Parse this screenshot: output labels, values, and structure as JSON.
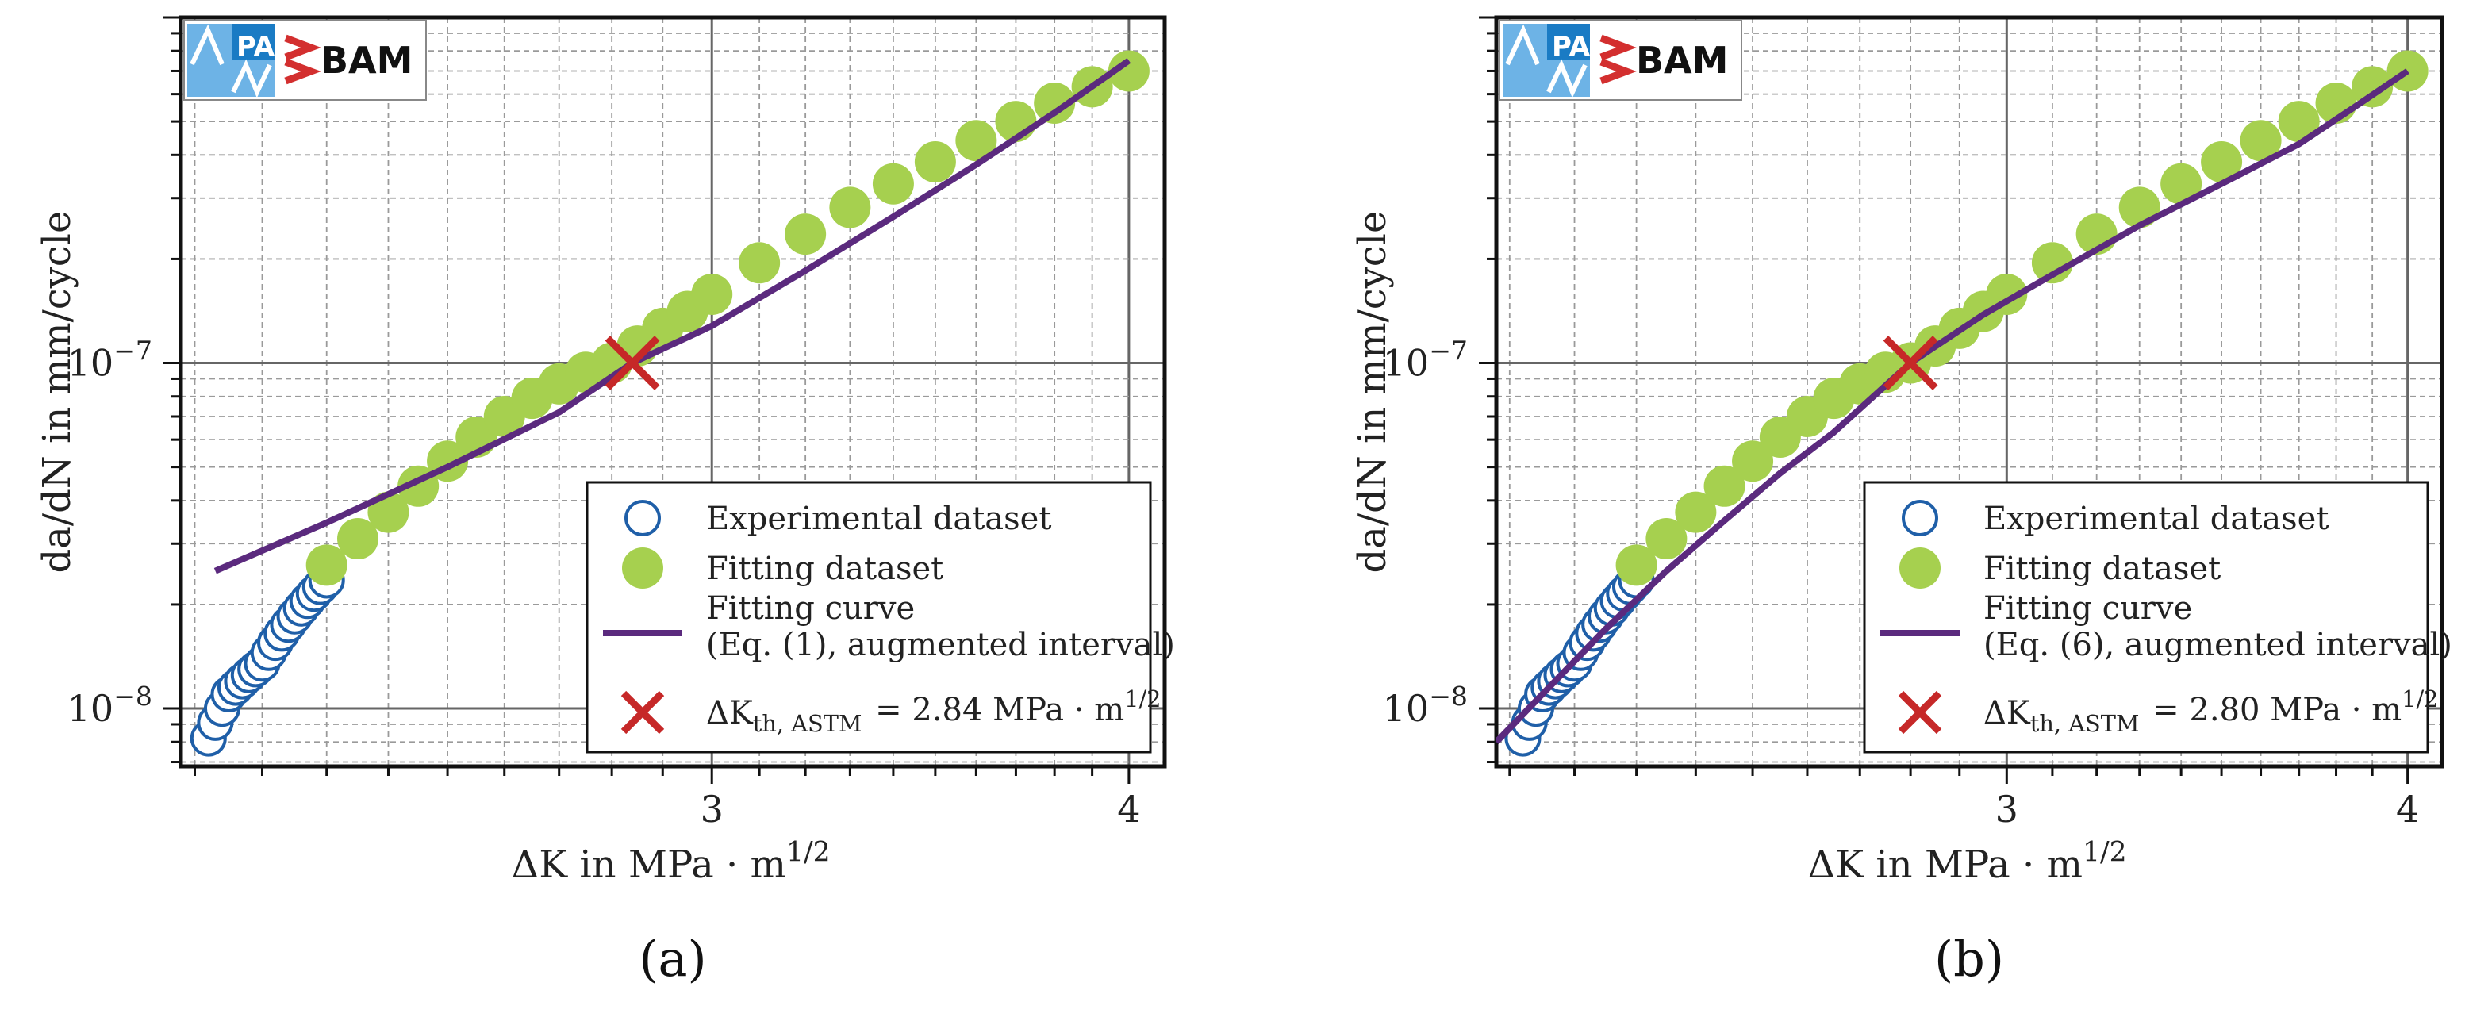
{
  "figure": {
    "colors": {
      "experimental": "#1f5fa8",
      "fitting_dataset": "#a6d04f",
      "fitting_curve": "#5b2a7e",
      "threshold_marker": "#c62828",
      "grid_major": "#666666",
      "grid_minor": "#9a9a9a"
    },
    "logo": {
      "text": "BAM",
      "letters": "MPA IfW",
      "icon": "bam-logo-icon"
    }
  },
  "chart_data": [
    {
      "type": "scatter",
      "panel_label": "(a)",
      "xlabel": "ΔK in MPa · m^1/2",
      "ylabel": "da/dN in mm/cycle",
      "xscale": "log",
      "yscale": "log",
      "xlim": [
        2.08,
        4.1
      ],
      "ylim": [
        6.8e-09,
        1e-06
      ],
      "x_ticks": [
        {
          "value": 3,
          "label": "3"
        },
        {
          "value": 4,
          "label": "4"
        }
      ],
      "y_ticks": [
        {
          "value": 1e-08,
          "label": "10",
          "exp": "−8"
        },
        {
          "value": 1e-07,
          "label": "10",
          "exp": "−7"
        }
      ],
      "grid": "on",
      "legend_position": "lower-right",
      "legend": [
        {
          "key": "experimental",
          "lines": [
            "Experimental dataset"
          ]
        },
        {
          "key": "fitting",
          "lines": [
            "Fitting dataset"
          ]
        },
        {
          "key": "curve",
          "lines": [
            "Fitting curve",
            "(Eq. (1), augmented interval)"
          ]
        },
        {
          "key": "threshold",
          "lines": [
            "ΔK_th, ASTM = 2.84 MPa · m^1/2"
          ]
        }
      ],
      "series": [
        {
          "name": "Experimental dataset",
          "kind": "open-circles",
          "x": [
            2.12,
            2.13,
            2.14,
            2.15,
            2.16,
            2.17,
            2.18,
            2.19,
            2.2,
            2.21,
            2.22,
            2.23,
            2.24,
            2.25,
            2.26,
            2.27,
            2.28,
            2.29,
            2.3
          ],
          "y": [
            8.2e-09,
            9.1e-09,
            1e-08,
            1.1e-08,
            1.15e-08,
            1.2e-08,
            1.25e-08,
            1.3e-08,
            1.35e-08,
            1.45e-08,
            1.55e-08,
            1.65e-08,
            1.75e-08,
            1.85e-08,
            1.95e-08,
            2.05e-08,
            2.15e-08,
            2.25e-08,
            2.35e-08
          ]
        },
        {
          "name": "Fitting dataset",
          "kind": "filled-circles",
          "x": [
            2.3,
            2.35,
            2.4,
            2.45,
            2.5,
            2.55,
            2.6,
            2.65,
            2.7,
            2.75,
            2.8,
            2.85,
            2.9,
            2.95,
            3.0,
            3.1,
            3.2,
            3.3,
            3.4,
            3.5,
            3.6,
            3.7,
            3.8,
            3.9,
            4.0
          ],
          "y": [
            2.6e-08,
            3.1e-08,
            3.7e-08,
            4.4e-08,
            5.2e-08,
            6.1e-08,
            7e-08,
            7.9e-08,
            8.7e-08,
            9.4e-08,
            1e-07,
            1.12e-07,
            1.26e-07,
            1.41e-07,
            1.58e-07,
            1.95e-07,
            2.36e-07,
            2.82e-07,
            3.3e-07,
            3.82e-07,
            4.4e-07,
            5e-07,
            5.65e-07,
            6.3e-07,
            7e-07
          ]
        },
        {
          "name": "Fitting curve",
          "kind": "line",
          "x": [
            2.13,
            2.3,
            2.5,
            2.7,
            2.84,
            3.0,
            3.2,
            3.4,
            3.6,
            3.8,
            4.0
          ],
          "y": [
            2.5e-08,
            3.45e-08,
            5e-08,
            7.2e-08,
            1e-07,
            1.28e-07,
            1.85e-07,
            2.65e-07,
            3.75e-07,
            5.3e-07,
            7.5e-07
          ]
        },
        {
          "name": "ΔK_th, ASTM",
          "kind": "x-marker",
          "x": [
            2.84
          ],
          "y": [
            1e-07
          ]
        }
      ]
    },
    {
      "type": "scatter",
      "panel_label": "(b)",
      "xlabel": "ΔK in MPa · m^1/2",
      "ylabel": "da/dN in mm/cycle",
      "xscale": "log",
      "yscale": "log",
      "xlim": [
        2.08,
        4.1
      ],
      "ylim": [
        6.8e-09,
        1e-06
      ],
      "x_ticks": [
        {
          "value": 3,
          "label": "3"
        },
        {
          "value": 4,
          "label": "4"
        }
      ],
      "y_ticks": [
        {
          "value": 1e-08,
          "label": "10",
          "exp": "−8"
        },
        {
          "value": 1e-07,
          "label": "10",
          "exp": "−7"
        }
      ],
      "grid": "on",
      "legend_position": "lower-right",
      "legend": [
        {
          "key": "experimental",
          "lines": [
            "Experimental dataset"
          ]
        },
        {
          "key": "fitting",
          "lines": [
            "Fitting dataset"
          ]
        },
        {
          "key": "curve",
          "lines": [
            "Fitting curve",
            "(Eq. (6), augmented interval)"
          ]
        },
        {
          "key": "threshold",
          "lines": [
            "ΔK_th, ASTM = 2.80 MPa · m^1/2"
          ]
        }
      ],
      "series": [
        {
          "name": "Experimental dataset",
          "kind": "open-circles",
          "x": [
            2.12,
            2.13,
            2.14,
            2.15,
            2.16,
            2.17,
            2.18,
            2.19,
            2.2,
            2.21,
            2.22,
            2.23,
            2.24,
            2.25,
            2.26,
            2.27,
            2.28,
            2.29,
            2.3
          ],
          "y": [
            8.2e-09,
            9.1e-09,
            1e-08,
            1.1e-08,
            1.15e-08,
            1.2e-08,
            1.25e-08,
            1.3e-08,
            1.35e-08,
            1.45e-08,
            1.55e-08,
            1.65e-08,
            1.75e-08,
            1.85e-08,
            1.95e-08,
            2.05e-08,
            2.15e-08,
            2.25e-08,
            2.35e-08
          ]
        },
        {
          "name": "Fitting dataset",
          "kind": "filled-circles",
          "x": [
            2.3,
            2.35,
            2.4,
            2.45,
            2.5,
            2.55,
            2.6,
            2.65,
            2.7,
            2.75,
            2.8,
            2.85,
            2.9,
            2.95,
            3.0,
            3.1,
            3.2,
            3.3,
            3.4,
            3.5,
            3.6,
            3.7,
            3.8,
            3.9,
            4.0
          ],
          "y": [
            2.6e-08,
            3.1e-08,
            3.7e-08,
            4.4e-08,
            5.2e-08,
            6.1e-08,
            7e-08,
            7.9e-08,
            8.7e-08,
            9.4e-08,
            1e-07,
            1.12e-07,
            1.26e-07,
            1.41e-07,
            1.58e-07,
            1.95e-07,
            2.36e-07,
            2.82e-07,
            3.3e-07,
            3.82e-07,
            4.4e-07,
            5e-07,
            5.65e-07,
            6.3e-07,
            7e-07
          ]
        },
        {
          "name": "Fitting curve",
          "kind": "line",
          "x": [
            2.08,
            2.15,
            2.25,
            2.35,
            2.45,
            2.55,
            2.65,
            2.8,
            2.95,
            3.1,
            3.3,
            3.5,
            3.7,
            3.85,
            4.0
          ],
          "y": [
            8e-09,
            1.1e-08,
            1.7e-08,
            2.5e-08,
            3.5e-08,
            4.8e-08,
            6.3e-08,
            1e-07,
            1.38e-07,
            1.8e-07,
            2.5e-07,
            3.3e-07,
            4.3e-07,
            5.5e-07,
            7e-07
          ]
        },
        {
          "name": "ΔK_th, ASTM",
          "kind": "x-marker",
          "x": [
            2.8
          ],
          "y": [
            1e-07
          ]
        }
      ]
    }
  ]
}
